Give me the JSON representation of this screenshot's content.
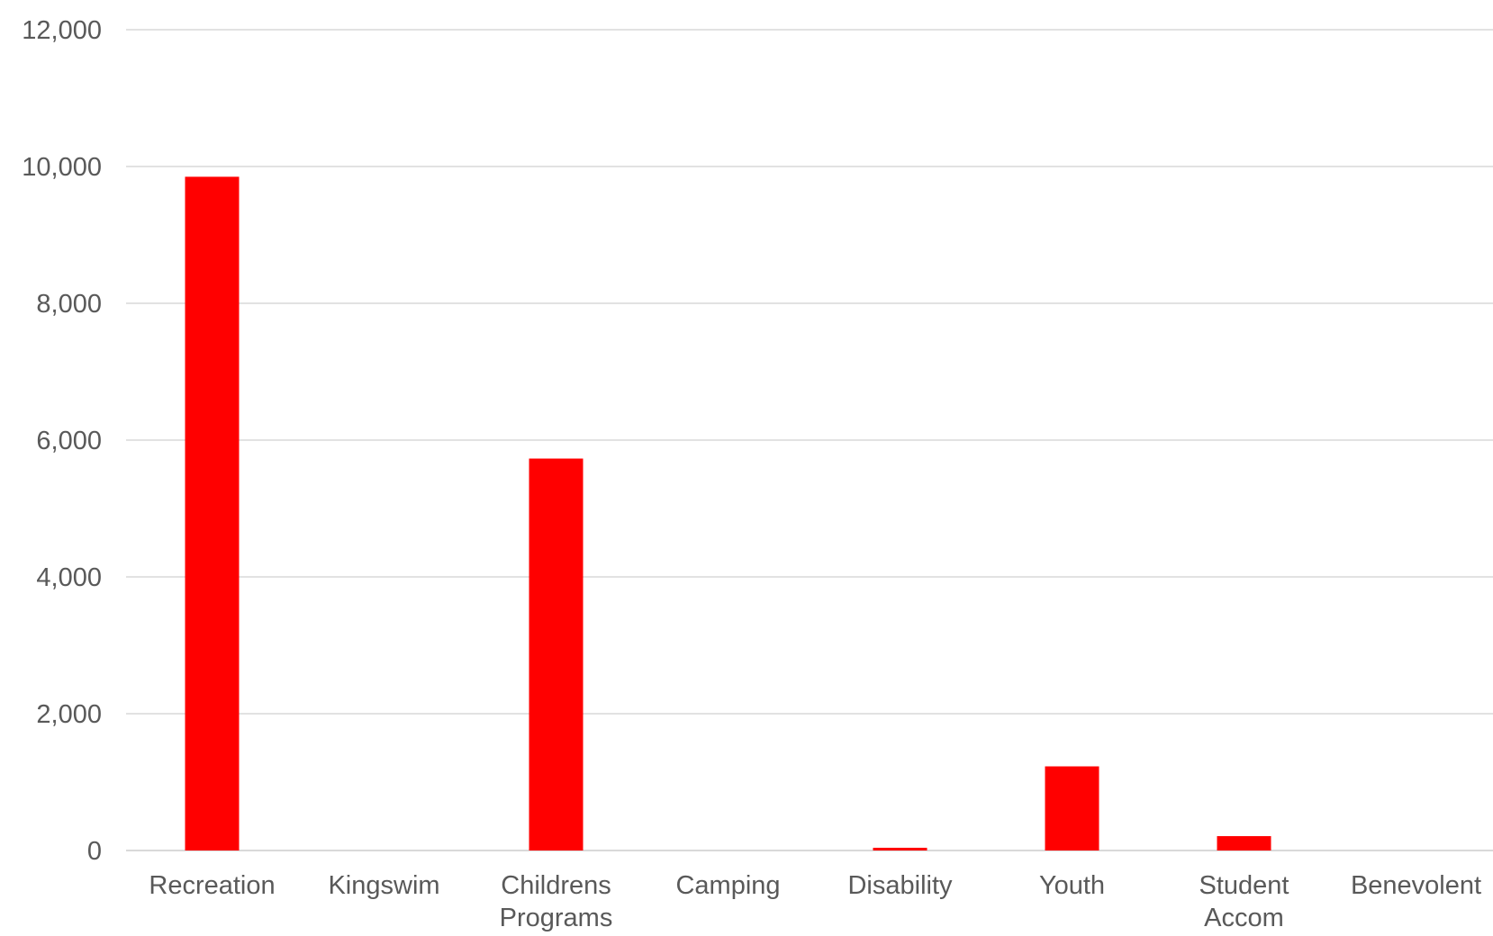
{
  "chart_data": {
    "type": "bar",
    "title": "",
    "xlabel": "",
    "ylabel": "",
    "categories": [
      [
        "Recreation"
      ],
      [
        "Kingswim"
      ],
      [
        "Childrens",
        "Programs"
      ],
      [
        "Camping"
      ],
      [
        "Disability"
      ],
      [
        "Youth"
      ],
      [
        "Student",
        "Accom"
      ],
      [
        "Benevolent"
      ]
    ],
    "values": [
      9850,
      0,
      5730,
      0,
      40,
      1230,
      210,
      0
    ],
    "ylim": [
      0,
      12000
    ],
    "yticks": [
      0,
      2000,
      4000,
      6000,
      8000,
      10000,
      12000
    ],
    "ytick_labels": [
      "0",
      "2,000",
      "4,000",
      "6,000",
      "8,000",
      "10,000",
      "12,000"
    ],
    "grid": true,
    "legend": "none",
    "colors": {
      "bar": "#ff0000",
      "grid": "#d9d9d9",
      "text": "#595959"
    }
  }
}
